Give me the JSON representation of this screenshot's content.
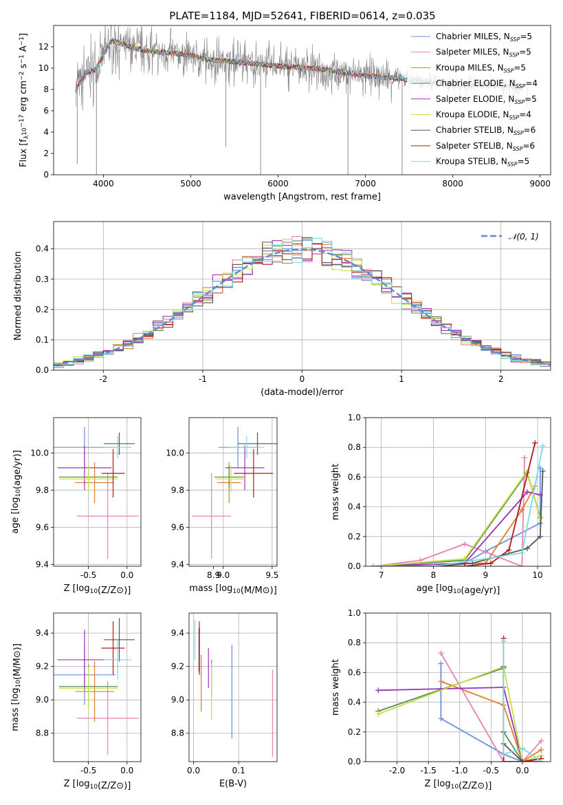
{
  "figure": {
    "title": "PLATE=1184, MJD=52641, FIBERID=0614, z=0.035"
  },
  "colors": {
    "Chabrier MILES": "#6a8ee0",
    "Salpeter MILES": "#e87fb8",
    "Kroupa MILES": "#e07c2a",
    "Chabrier ELODIE": "#5a8a5a",
    "Salpeter ELODIE": "#9b30b8",
    "Kroupa ELODIE": "#c5e040",
    "Chabrier STELIB": "#555555",
    "Salpeter STELIB": "#b01818",
    "Kroupa STELIB": "#7ad8e0",
    "data": "#808080",
    "gaussian": "#5b8bd8"
  },
  "chart_data": [
    {
      "id": "spectrum",
      "type": "line",
      "title": "PLATE=1184, MJD=52641, FIBERID=0614, z=0.035",
      "xlabel": "wavelength [Angstrom, rest frame]",
      "ylabel": "Flux [f_λ10^{-17} erg cm^{-2} s^{-1} A^{-1}]",
      "xlim": [
        3430,
        9120
      ],
      "ylim": [
        0,
        14
      ],
      "xticks": [
        4000,
        5000,
        6000,
        7000,
        8000,
        9000
      ],
      "yticks": [
        0,
        2,
        4,
        6,
        8,
        10,
        12
      ],
      "grid": false,
      "legend_position": "top-right",
      "legend": [
        {
          "label": "Chabrier MILES, N",
          "sub": "SSP",
          "suffix": "=5",
          "model": "Chabrier MILES"
        },
        {
          "label": "Salpeter MILES, N",
          "sub": "SSP",
          "suffix": "=5",
          "model": "Salpeter MILES"
        },
        {
          "label": "Kroupa MILES, N",
          "sub": "SSP",
          "suffix": "=5",
          "model": "Kroupa MILES"
        },
        {
          "label": "Chabrier ELODIE, N",
          "sub": "SSP",
          "suffix": "=4",
          "model": "Chabrier ELODIE"
        },
        {
          "label": "Salpeter ELODIE, N",
          "sub": "SSP",
          "suffix": "=5",
          "model": "Salpeter ELODIE"
        },
        {
          "label": "Kroupa ELODIE, N",
          "sub": "SSP",
          "suffix": "=4",
          "model": "Kroupa ELODIE"
        },
        {
          "label": "Chabrier STELIB, N",
          "sub": "SSP",
          "suffix": "=6",
          "model": "Chabrier STELIB"
        },
        {
          "label": "Salpeter STELIB, N",
          "sub": "SSP",
          "suffix": "=6",
          "model": "Salpeter STELIB"
        },
        {
          "label": "Kroupa STELIB, N",
          "sub": "SSP",
          "suffix": "=5",
          "model": "Kroupa STELIB"
        }
      ],
      "data_continuum": [
        [
          3680,
          8.0
        ],
        [
          3800,
          9.6
        ],
        [
          3900,
          9.8
        ],
        [
          4000,
          11.2
        ],
        [
          4100,
          12.6
        ],
        [
          4300,
          12.0
        ],
        [
          4500,
          11.6
        ],
        [
          4800,
          11.4
        ],
        [
          5000,
          11.2
        ],
        [
          5200,
          10.8
        ],
        [
          5500,
          10.6
        ],
        [
          6000,
          10.2
        ],
        [
          6500,
          9.9
        ],
        [
          7000,
          9.3
        ],
        [
          7400,
          9.0
        ],
        [
          8000,
          8.5
        ],
        [
          8500,
          8.4
        ],
        [
          8800,
          8.2
        ]
      ],
      "model_ranges": {
        "Chabrier MILES": [
          3680,
          7420
        ],
        "Salpeter MILES": [
          3680,
          7420
        ],
        "Kroupa MILES": [
          3680,
          7420
        ],
        "Chabrier ELODIE": [
          3680,
          6800
        ],
        "Salpeter ELODIE": [
          3680,
          6800
        ],
        "Kroupa ELODIE": [
          3900,
          6800
        ],
        "Chabrier STELIB": [
          3680,
          8780
        ],
        "Salpeter STELIB": [
          3680,
          8780
        ],
        "Kroupa STELIB": [
          3680,
          8780
        ]
      },
      "deep_features": [
        [
          3700,
          1.0
        ],
        [
          3920,
          0.0
        ],
        [
          5400,
          2.6
        ],
        [
          5800,
          0.0
        ],
        [
          6800,
          0.0
        ],
        [
          7420,
          0.0
        ],
        [
          8590,
          7.8
        ],
        [
          8650,
          6.0
        ],
        [
          8850,
          6.3
        ]
      ]
    },
    {
      "id": "residuals",
      "type": "histogram",
      "xlabel": "(data-model)/error",
      "ylabel": "Normed distribution",
      "xlim": [
        -2.5,
        2.5
      ],
      "ylim": [
        0,
        0.49
      ],
      "xticks": [
        -2,
        -1,
        0,
        1,
        2
      ],
      "yticks": [
        0.0,
        0.1,
        0.2,
        0.3,
        0.4
      ],
      "grid": true,
      "legend_position": "top-right",
      "legend": [
        {
          "label": "𝒩(0, 1)",
          "series": "gaussian"
        }
      ],
      "bin_width": 0.1,
      "series_note": "nine model residual histograms closely following N(0,1)"
    },
    {
      "id": "age_vs_Z",
      "type": "errorbar",
      "xlabel": "Z [log10(Z/Z⊙)]",
      "ylabel": "age  [log10(age/yr)]",
      "xlim": [
        -0.95,
        0.18
      ],
      "ylim": [
        9.39,
        10.19
      ],
      "xticks": [
        -0.5,
        0.0
      ],
      "yticks": [
        9.4,
        9.6,
        9.8,
        10.0
      ],
      "grid": true,
      "points": [
        {
          "model": "Chabrier MILES",
          "x": -0.55,
          "xerr": 0.4,
          "y": 10.03,
          "yerr": 0.11
        },
        {
          "model": "Salpeter MILES",
          "x": -0.25,
          "xerr": 0.4,
          "y": 9.66,
          "yerr": 0.23
        },
        {
          "model": "Kroupa MILES",
          "x": -0.42,
          "xerr": 0.25,
          "y": 9.84,
          "yerr": 0.11
        },
        {
          "model": "Chabrier ELODIE",
          "x": -0.5,
          "xerr": 0.38,
          "y": 9.87,
          "yerr": 0.06
        },
        {
          "model": "Salpeter ELODIE",
          "x": -0.55,
          "xerr": 0.35,
          "y": 9.92,
          "yerr": 0.12
        },
        {
          "model": "Kroupa ELODIE",
          "x": -0.5,
          "xerr": 0.38,
          "y": 9.86,
          "yerr": 0.07
        },
        {
          "model": "Chabrier STELIB",
          "x": -0.1,
          "xerr": 0.2,
          "y": 10.05,
          "yerr": 0.06
        },
        {
          "model": "Salpeter STELIB",
          "x": -0.18,
          "xerr": 0.15,
          "y": 9.89,
          "yerr": 0.13
        },
        {
          "model": "Kroupa STELIB",
          "x": -0.12,
          "xerr": 0.18,
          "y": 10.03,
          "yerr": 0.06
        }
      ]
    },
    {
      "id": "age_vs_mass",
      "type": "errorbar",
      "xlabel": "mass [log10(M/M⊙)]",
      "ylabel": "",
      "xlim": [
        8.65,
        9.55
      ],
      "ylim": [
        9.39,
        10.19
      ],
      "xticks": [
        9.0,
        9.5
      ],
      "xticklabels": [
        "9.0",
        "9.5"
      ],
      "extra_xtick_labels": [
        {
          "value": 8.9,
          "label": "8.9"
        }
      ],
      "yticks": [
        9.4,
        9.6,
        9.8,
        10.0
      ],
      "grid": true,
      "points": [
        {
          "model": "Chabrier MILES",
          "x": 9.15,
          "xerr": 0.2,
          "y": 10.03,
          "yerr": 0.11
        },
        {
          "model": "Salpeter MILES",
          "x": 8.88,
          "xerr": 0.2,
          "y": 9.66,
          "yerr": 0.23
        },
        {
          "model": "Kroupa MILES",
          "x": 9.06,
          "xerr": 0.12,
          "y": 9.84,
          "yerr": 0.11
        },
        {
          "model": "Chabrier ELODIE",
          "x": 9.06,
          "xerr": 0.15,
          "y": 9.87,
          "yerr": 0.06
        },
        {
          "model": "Salpeter ELODIE",
          "x": 9.22,
          "xerr": 0.2,
          "y": 9.92,
          "yerr": 0.12
        },
        {
          "model": "Kroupa ELODIE",
          "x": 9.08,
          "xerr": 0.15,
          "y": 9.86,
          "yerr": 0.07
        },
        {
          "model": "Chabrier STELIB",
          "x": 9.35,
          "xerr": 0.2,
          "y": 10.05,
          "yerr": 0.06
        },
        {
          "model": "Salpeter STELIB",
          "x": 9.31,
          "xerr": 0.2,
          "y": 9.89,
          "yerr": 0.13
        },
        {
          "model": "Kroupa STELIB",
          "x": 9.24,
          "xerr": 0.18,
          "y": 10.03,
          "yerr": 0.06
        }
      ]
    },
    {
      "id": "weight_vs_age",
      "type": "line",
      "xlabel": "age  [log10(age/yr)]",
      "ylabel": "mass weight",
      "xlim": [
        6.7,
        10.25
      ],
      "ylim": [
        0,
        1.0
      ],
      "xticks": [
        7,
        8,
        9,
        10
      ],
      "yticks": [
        0.0,
        0.2,
        0.4,
        0.6,
        0.8,
        1.0
      ],
      "grid": true,
      "series": [
        {
          "model": "Chabrier MILES",
          "x": [
            6.85,
            8.6,
            9.0,
            10.05,
            10.05
          ],
          "y": [
            0.0,
            0.02,
            0.1,
            0.29,
            0.66
          ]
        },
        {
          "model": "Salpeter MILES",
          "x": [
            6.85,
            7.75,
            8.6,
            9.7,
            9.75
          ],
          "y": [
            0.0,
            0.04,
            0.15,
            0.0,
            0.73
          ]
        },
        {
          "model": "Kroupa MILES",
          "x": [
            6.85,
            8.6,
            9.0,
            9.7,
            9.95
          ],
          "y": [
            0.0,
            0.02,
            0.02,
            0.38,
            0.54
          ]
        },
        {
          "model": "Chabrier ELODIE",
          "x": [
            6.85,
            8.6,
            9.8,
            10.05
          ],
          "y": [
            0.0,
            0.04,
            0.63,
            0.33
          ]
        },
        {
          "model": "Salpeter ELODIE",
          "x": [
            6.85,
            8.6,
            9.8,
            10.05
          ],
          "y": [
            0.0,
            0.02,
            0.5,
            0.48
          ]
        },
        {
          "model": "Kroupa ELODIE",
          "x": [
            6.85,
            8.6,
            9.8,
            10.05
          ],
          "y": [
            0.0,
            0.05,
            0.64,
            0.32
          ]
        },
        {
          "model": "Chabrier STELIB",
          "x": [
            6.85,
            8.0,
            8.75,
            9.8,
            10.05,
            10.1
          ],
          "y": [
            0.0,
            0.0,
            0.02,
            0.12,
            0.2,
            0.64
          ]
        },
        {
          "model": "Salpeter STELIB",
          "x": [
            6.85,
            8.6,
            9.1,
            9.45,
            9.95
          ],
          "y": [
            0.0,
            0.0,
            0.02,
            0.11,
            0.83
          ]
        },
        {
          "model": "Kroupa STELIB",
          "x": [
            6.85,
            8.0,
            9.0,
            9.7,
            10.1
          ],
          "y": [
            0.0,
            0.0,
            0.05,
            0.09,
            0.81
          ]
        }
      ]
    },
    {
      "id": "mass_vs_Z",
      "type": "errorbar",
      "xlabel": "Z [log10(Z/Z⊙)]",
      "ylabel": "mass [log10(M/M⊙)]",
      "xlim": [
        -0.95,
        0.18
      ],
      "ylim": [
        8.63,
        9.52
      ],
      "xticks": [
        -0.5,
        0.0
      ],
      "yticks": [
        8.8,
        9.0,
        9.2,
        9.4
      ],
      "grid": true,
      "points": [
        {
          "model": "Chabrier MILES",
          "x": -0.55,
          "xerr": 0.4,
          "y": 9.15,
          "yerr": 0.18
        },
        {
          "model": "Salpeter MILES",
          "x": -0.25,
          "xerr": 0.4,
          "y": 8.89,
          "yerr": 0.22
        },
        {
          "model": "Kroupa MILES",
          "x": -0.42,
          "xerr": 0.25,
          "y": 9.05,
          "yerr": 0.18
        },
        {
          "model": "Chabrier ELODIE",
          "x": -0.5,
          "xerr": 0.38,
          "y": 9.08,
          "yerr": 0.13
        },
        {
          "model": "Salpeter ELODIE",
          "x": -0.55,
          "xerr": 0.35,
          "y": 9.24,
          "yerr": 0.18
        },
        {
          "model": "Kroupa ELODIE",
          "x": -0.5,
          "xerr": 0.38,
          "y": 9.07,
          "yerr": 0.13
        },
        {
          "model": "Chabrier STELIB",
          "x": -0.1,
          "xerr": 0.2,
          "y": 9.36,
          "yerr": 0.13
        },
        {
          "model": "Salpeter STELIB",
          "x": -0.18,
          "xerr": 0.15,
          "y": 9.31,
          "yerr": 0.16
        },
        {
          "model": "Kroupa STELIB",
          "x": -0.12,
          "xerr": 0.18,
          "y": 9.24,
          "yerr": 0.12
        }
      ]
    },
    {
      "id": "mass_vs_ebv",
      "type": "errorbar",
      "xlabel": "E(B-V)",
      "ylabel": "",
      "xlim": [
        -0.01,
        0.185
      ],
      "ylim": [
        8.63,
        9.52
      ],
      "xticks": [
        0.0,
        0.1
      ],
      "yticks": [
        8.8,
        9.0,
        9.2,
        9.4
      ],
      "grid": true,
      "points": [
        {
          "model": "Chabrier MILES",
          "x": 0.085,
          "y": 9.05,
          "yerr": 0.28
        },
        {
          "model": "Salpeter MILES",
          "x": 0.175,
          "y": 8.92,
          "yerr": 0.26
        },
        {
          "model": "Kroupa MILES",
          "x": 0.017,
          "y": 9.1,
          "yerr": 0.17
        },
        {
          "model": "Chabrier ELODIE",
          "x": 0.04,
          "y": 9.13,
          "yerr": 0.11
        },
        {
          "model": "Salpeter ELODIE",
          "x": 0.033,
          "y": 9.19,
          "yerr": 0.12
        },
        {
          "model": "Kroupa ELODIE",
          "x": 0.04,
          "y": 9.05,
          "yerr": 0.17
        },
        {
          "model": "Chabrier STELIB",
          "x": 0.012,
          "y": 9.3,
          "yerr": 0.13
        },
        {
          "model": "Salpeter STELIB",
          "x": 0.013,
          "y": 9.31,
          "yerr": 0.16
        },
        {
          "model": "Kroupa STELIB",
          "x": 0.003,
          "y": 9.36,
          "yerr": 0.12
        }
      ]
    },
    {
      "id": "weight_vs_Z",
      "type": "line",
      "xlabel": "Z [log10(Z/Z⊙)]",
      "ylabel": "mass weight",
      "xlim": [
        -2.5,
        0.45
      ],
      "ylim": [
        0,
        1.0
      ],
      "xticks": [
        -2.0,
        -1.5,
        -1.0,
        -0.5,
        0.0
      ],
      "yticks": [
        0.0,
        0.2,
        0.4,
        0.6,
        0.8,
        1.0
      ],
      "grid": true,
      "series": [
        {
          "model": "Chabrier MILES",
          "x": [
            -1.3,
            -1.3,
            -0.3,
            0.0,
            0.3
          ],
          "y": [
            0.66,
            0.29,
            0.05,
            0.0,
            0.0
          ]
        },
        {
          "model": "Salpeter MILES",
          "x": [
            -1.3,
            -0.3,
            0.0,
            0.3
          ],
          "y": [
            0.73,
            0.0,
            0.0,
            0.14
          ]
        },
        {
          "model": "Kroupa MILES",
          "x": [
            -1.3,
            -0.3,
            0.0,
            0.3
          ],
          "y": [
            0.54,
            0.38,
            0.0,
            0.08
          ]
        },
        {
          "model": "Chabrier ELODIE",
          "x": [
            -2.3,
            -0.3,
            -0.3,
            0.0
          ],
          "y": [
            0.34,
            0.63,
            0.2,
            0.0
          ]
        },
        {
          "model": "Salpeter ELODIE",
          "x": [
            -2.3,
            -0.3,
            0.0,
            0.3
          ],
          "y": [
            0.48,
            0.5,
            0.0,
            0.02
          ]
        },
        {
          "model": "Kroupa ELODIE",
          "x": [
            -2.3,
            -0.3,
            0.0,
            0.3
          ],
          "y": [
            0.32,
            0.64,
            0.0,
            0.04
          ]
        },
        {
          "model": "Chabrier STELIB",
          "x": [
            -0.3,
            -0.3,
            -0.3,
            0.0,
            0.3
          ],
          "y": [
            0.64,
            0.2,
            0.12,
            0.0,
            0.0
          ]
        },
        {
          "model": "Salpeter STELIB",
          "x": [
            -0.3,
            -0.3,
            0.0,
            0.3
          ],
          "y": [
            0.83,
            0.0,
            0.0,
            0.02
          ]
        },
        {
          "model": "Kroupa STELIB",
          "x": [
            -0.3,
            -0.3,
            0.0,
            0.3
          ],
          "y": [
            0.81,
            0.05,
            0.09,
            0.0
          ]
        }
      ]
    }
  ]
}
